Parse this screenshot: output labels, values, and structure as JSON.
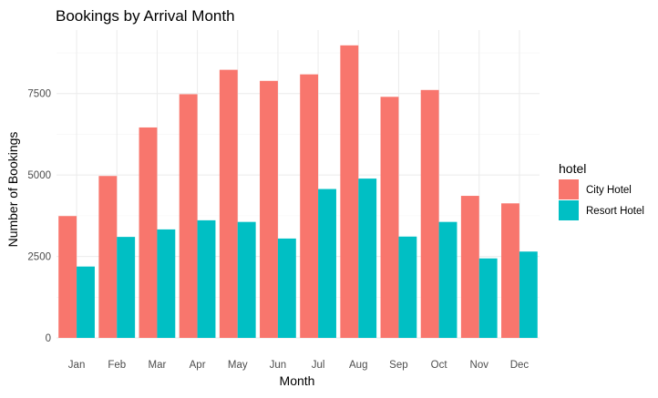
{
  "chart_data": {
    "type": "bar",
    "title": "Bookings by Arrival Month",
    "xlabel": "Month",
    "ylabel": "Number of Bookings",
    "categories": [
      "Jan",
      "Feb",
      "Mar",
      "Apr",
      "May",
      "Jun",
      "Jul",
      "Aug",
      "Sep",
      "Oct",
      "Nov",
      "Dec"
    ],
    "series": [
      {
        "name": "City Hotel",
        "color": "#F8766D",
        "values": [
          3740,
          4970,
          6460,
          7480,
          8230,
          7890,
          8090,
          8980,
          7400,
          7610,
          4360,
          4130
        ]
      },
      {
        "name": "Resort Hotel",
        "color": "#00BFC4",
        "values": [
          2190,
          3100,
          3330,
          3610,
          3560,
          3050,
          4570,
          4890,
          3110,
          3560,
          2440,
          2650
        ]
      }
    ],
    "ylim": [
      0,
      9450
    ],
    "yticks": [
      0,
      2500,
      5000,
      7500
    ],
    "ytick_labels": [
      "0",
      "2500",
      "5000",
      "7500"
    ],
    "grid": true,
    "legend": {
      "title": "hotel",
      "position": "right"
    }
  }
}
